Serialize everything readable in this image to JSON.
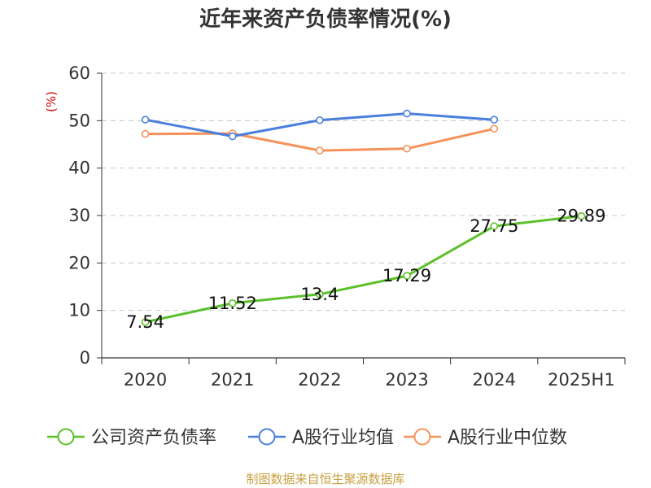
{
  "chart_data": {
    "type": "line",
    "title": "近年来资产负债率情况(%)",
    "ylabel": "(%)",
    "xlabel": "",
    "categories": [
      "2020",
      "2021",
      "2022",
      "2023",
      "2024",
      "2025H1"
    ],
    "ylim": [
      0,
      60
    ],
    "yticks": [
      0,
      10,
      20,
      30,
      40,
      50,
      60
    ],
    "grid": true,
    "legend_position": "bottom",
    "series": [
      {
        "name": "公司资产负债率",
        "color": "#5cc02c",
        "values": [
          7.54,
          11.52,
          13.4,
          17.29,
          27.75,
          29.89
        ],
        "labels": [
          "7.54",
          "11.52",
          "13.4",
          "17.29",
          "27.75",
          "29.89"
        ]
      },
      {
        "name": "A股行业均值",
        "color": "#4a7fdc",
        "values": [
          50.2,
          46.7,
          50.1,
          51.5,
          50.2,
          null
        ]
      },
      {
        "name": "A股行业中位数",
        "color": "#f4925a",
        "values": [
          47.2,
          47.3,
          43.7,
          44.1,
          48.3,
          null
        ]
      }
    ],
    "source": "制图数据来自恒生聚源数据库"
  }
}
